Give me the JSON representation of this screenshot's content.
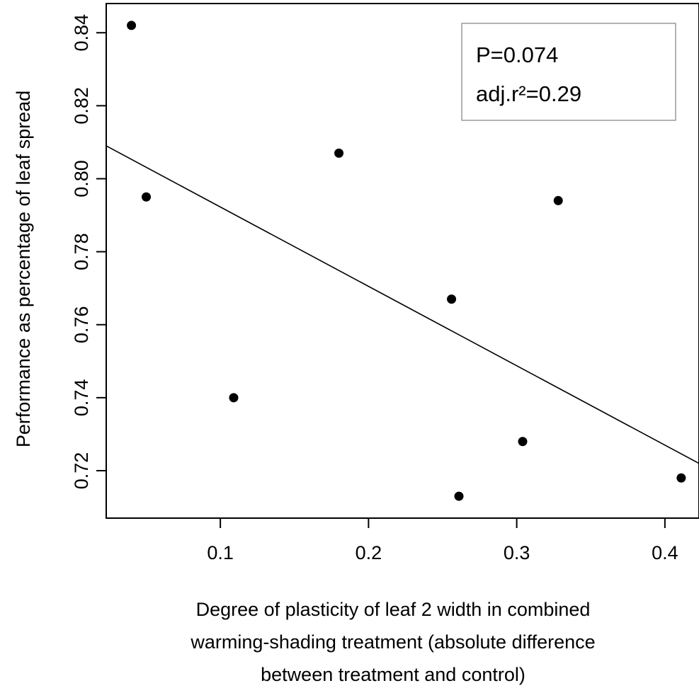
{
  "chart_data": {
    "type": "scatter",
    "title": "",
    "xlabel_lines": [
      "Degree of plasticity of leaf 2 width in combined",
      "warming-shading treatment (absolute difference",
      "between treatment and control)"
    ],
    "ylabel": "Performance as percentage of leaf spread",
    "xlim": [
      0.023,
      0.423
    ],
    "ylim": [
      0.707,
      0.848
    ],
    "x_ticks": [
      0.1,
      0.2,
      0.3,
      0.4
    ],
    "x_tick_labels": [
      "0.1",
      "0.2",
      "0.3",
      "0.4"
    ],
    "y_ticks": [
      0.72,
      0.74,
      0.76,
      0.78,
      0.8,
      0.82,
      0.84
    ],
    "y_tick_labels": [
      "0.72",
      "0.74",
      "0.76",
      "0.78",
      "0.80",
      "0.82",
      "0.84"
    ],
    "points": [
      {
        "x": 0.04,
        "y": 0.842
      },
      {
        "x": 0.05,
        "y": 0.795
      },
      {
        "x": 0.109,
        "y": 0.74
      },
      {
        "x": 0.18,
        "y": 0.807
      },
      {
        "x": 0.256,
        "y": 0.767
      },
      {
        "x": 0.261,
        "y": 0.713
      },
      {
        "x": 0.304,
        "y": 0.728
      },
      {
        "x": 0.328,
        "y": 0.794
      },
      {
        "x": 0.411,
        "y": 0.718
      }
    ],
    "regression_line": {
      "x": [
        0.023,
        0.423
      ],
      "y": [
        0.809,
        0.722
      ]
    },
    "annotation": [
      "P=0.074",
      "adj.r²=0.29"
    ],
    "grid": false,
    "point_color": "#000000",
    "line_color": "#000000"
  }
}
